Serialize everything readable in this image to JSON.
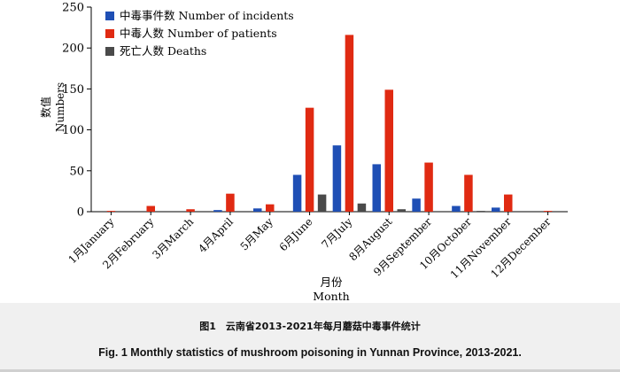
{
  "chart_data": {
    "type": "bar",
    "categories": [
      "1月January",
      "2月February",
      "3月March",
      "4月April",
      "5月May",
      "6月June",
      "7月July",
      "8月August",
      "9月September",
      "10月October",
      "11月November",
      "12月December"
    ],
    "series": [
      {
        "name": "中毒事件数 Number of incidents",
        "color": "#1f4fb5",
        "values": [
          0,
          0,
          0,
          2,
          4,
          45,
          81,
          58,
          16,
          7,
          5,
          0
        ]
      },
      {
        "name": "中毒人数 Number of patients",
        "color": "#e02a12",
        "values": [
          1,
          7,
          3,
          22,
          9,
          127,
          216,
          149,
          60,
          45,
          21,
          1
        ]
      },
      {
        "name": "死亡人数 Deaths",
        "color": "#4a4a4a",
        "values": [
          0,
          0,
          0,
          0,
          0,
          21,
          10,
          3,
          0,
          1,
          0,
          0
        ]
      }
    ],
    "ylim": [
      0,
      250
    ],
    "yticks": [
      0,
      50,
      100,
      150,
      200,
      250
    ],
    "ylabel": [
      "数值",
      "Numbers"
    ],
    "xlabel": [
      "月份",
      "Month"
    ],
    "legend_position": "top-left",
    "grid": false
  },
  "caption": {
    "cn": "图1　云南省2013-2021年每月蘑菇中毒事件统计",
    "en": "Fig. 1   Monthly statistics of mushroom poisoning in Yunnan Province, 2013-2021."
  }
}
